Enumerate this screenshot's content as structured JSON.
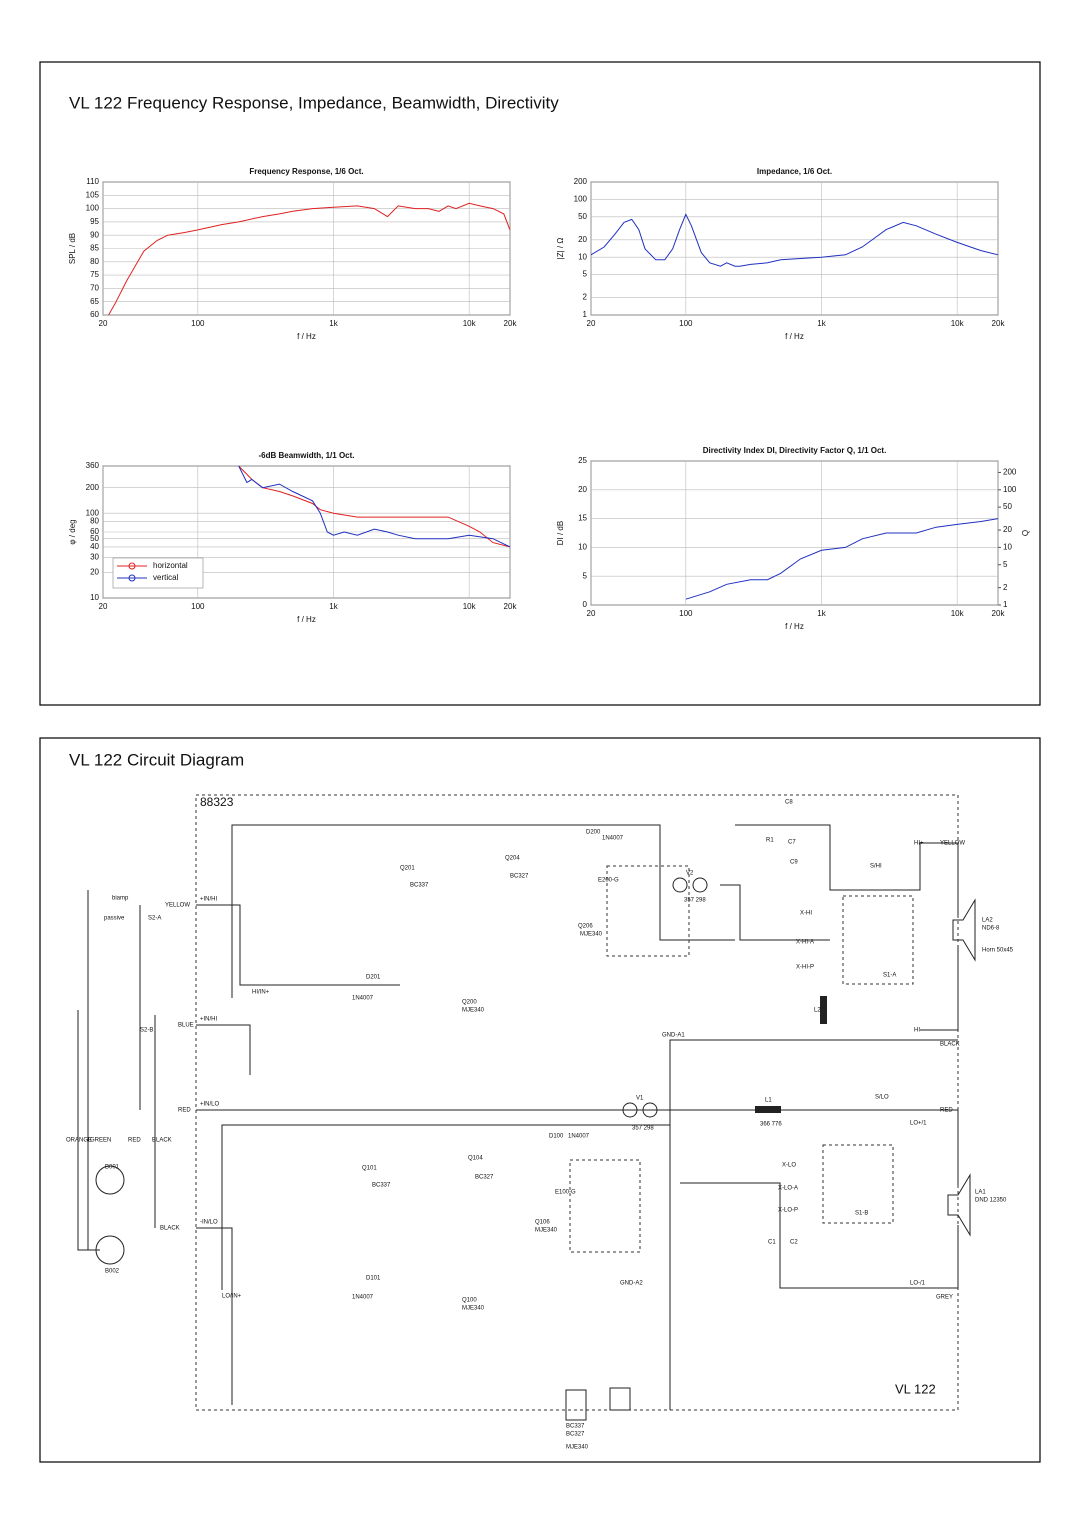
{
  "title": "VL 122  Frequency Response, Impedance, Beamwidth, Directivity",
  "chart_data": [
    {
      "type": "line",
      "title": "Frequency Response, 1/6 Oct.",
      "xlabel": "f / Hz",
      "ylabel": "SPL / dB",
      "xscale": "log",
      "xlim": [
        20,
        20000
      ],
      "ylim": [
        60,
        110
      ],
      "grid": true,
      "xticks": [
        20,
        100,
        {
          "value": 1000,
          "label": "1k"
        },
        {
          "value": 10000,
          "label": "10k"
        },
        {
          "value": 20000,
          "label": "20k"
        }
      ],
      "yticks": [
        60,
        65,
        70,
        75,
        80,
        85,
        90,
        95,
        100,
        105,
        110
      ],
      "series": [
        {
          "color": "#e02020",
          "x": [
            22,
            25,
            30,
            40,
            50,
            60,
            80,
            100,
            150,
            200,
            300,
            400,
            500,
            700,
            1000,
            1500,
            2000,
            2500,
            3000,
            4000,
            5000,
            6000,
            7000,
            8000,
            10000,
            12000,
            15000,
            18000,
            20000
          ],
          "values": [
            60,
            65,
            73,
            84,
            88,
            90,
            91,
            92,
            94,
            95,
            97,
            98,
            99,
            100,
            100.5,
            101,
            100,
            97,
            101,
            100,
            100,
            99,
            101,
            100,
            102,
            101,
            100,
            98,
            92
          ]
        }
      ]
    },
    {
      "type": "line",
      "title": "Impedance, 1/6 Oct.",
      "xlabel": "f / Hz",
      "ylabel": "|Z| / Ω",
      "xscale": "log",
      "yscale": "log",
      "xlim": [
        20,
        20000
      ],
      "ylim": [
        1,
        200
      ],
      "grid": true,
      "xticks": [
        20,
        100,
        {
          "value": 1000,
          "label": "1k"
        },
        {
          "value": 10000,
          "label": "10k"
        },
        {
          "value": 20000,
          "label": "20k"
        }
      ],
      "yticks": [
        1,
        2,
        5,
        10,
        20,
        50,
        100,
        200
      ],
      "series": [
        {
          "color": "#2030c0",
          "x": [
            20,
            25,
            30,
            35,
            40,
            45,
            50,
            60,
            70,
            80,
            90,
            100,
            110,
            130,
            150,
            180,
            200,
            230,
            250,
            300,
            400,
            500,
            700,
            1000,
            1500,
            2000,
            2500,
            3000,
            4000,
            5000,
            7000,
            10000,
            15000,
            20000
          ],
          "values": [
            11,
            15,
            25,
            40,
            45,
            30,
            14,
            9,
            9,
            14,
            30,
            55,
            35,
            12,
            8,
            7,
            8,
            7,
            7,
            7.5,
            8,
            9,
            9.5,
            10,
            11,
            15,
            22,
            30,
            40,
            35,
            25,
            18,
            13,
            11
          ]
        }
      ]
    },
    {
      "type": "line",
      "title": "-6dB Beamwidth, 1/1 Oct.",
      "xlabel": "f / Hz",
      "ylabel": "φ / deg",
      "xscale": "log",
      "yscale": "log",
      "xlim": [
        20,
        20000
      ],
      "ylim": [
        10,
        360
      ],
      "grid": true,
      "legend": "lower-left",
      "xticks": [
        20,
        100,
        {
          "value": 1000,
          "label": "1k"
        },
        {
          "value": 10000,
          "label": "10k"
        },
        {
          "value": 20000,
          "label": "20k"
        }
      ],
      "yticks": [
        10,
        20,
        30,
        40,
        50,
        60,
        80,
        100,
        200,
        360
      ],
      "series": [
        {
          "name": "horizontal",
          "color": "#e02020",
          "x": [
            200,
            250,
            300,
            400,
            500,
            700,
            800,
            1000,
            1500,
            2000,
            3000,
            4000,
            5000,
            7000,
            10000,
            12000,
            15000,
            20000
          ],
          "values": [
            360,
            250,
            200,
            180,
            160,
            130,
            110,
            100,
            90,
            90,
            90,
            90,
            90,
            90,
            70,
            60,
            45,
            40
          ]
        },
        {
          "name": "vertical",
          "color": "#2030c0",
          "x": [
            200,
            230,
            250,
            300,
            400,
            500,
            700,
            800,
            900,
            1000,
            1200,
            1500,
            2000,
            2500,
            3000,
            4000,
            5000,
            7000,
            10000,
            15000,
            20000
          ],
          "values": [
            360,
            230,
            250,
            200,
            220,
            180,
            140,
            100,
            60,
            55,
            60,
            55,
            65,
            60,
            55,
            50,
            50,
            50,
            55,
            50,
            40
          ]
        }
      ]
    },
    {
      "type": "line",
      "title": "Directivity Index DI, Directivity Factor Q, 1/1 Oct.",
      "xlabel": "f / Hz",
      "ylabel": "DI / dB",
      "y2label": "Q",
      "xscale": "log",
      "y2scale": "log",
      "xlim": [
        20,
        20000
      ],
      "ylim": [
        0,
        25
      ],
      "y2lim": [
        1,
        316
      ],
      "grid": true,
      "xticks": [
        20,
        100,
        {
          "value": 1000,
          "label": "1k"
        },
        {
          "value": 10000,
          "label": "10k"
        },
        {
          "value": 20000,
          "label": "20k"
        }
      ],
      "yticks": [
        0,
        5,
        10,
        15,
        20,
        25
      ],
      "y2ticks": [
        1,
        2,
        5,
        10,
        20,
        50,
        100,
        200
      ],
      "series": [
        {
          "color": "#2030c0",
          "x": [
            100,
            150,
            200,
            300,
            400,
            500,
            700,
            1000,
            1500,
            2000,
            3000,
            4000,
            5000,
            7000,
            10000,
            15000,
            20000
          ],
          "values": [
            1,
            2.3,
            3.6,
            4.4,
            4.4,
            5.5,
            8,
            9.5,
            10,
            11.5,
            12.5,
            12.5,
            12.5,
            13.5,
            14,
            14.5,
            15
          ]
        }
      ]
    }
  ],
  "diagram": {
    "title": "VL 122 Circuit Diagram",
    "code": "88323",
    "model": "VL 122",
    "labels": [
      "YELLOW",
      "+IN/HI",
      "S2-A",
      "biamp",
      "passive",
      "BLUE",
      "+IN/HI",
      "S2-B",
      "RED",
      "+IN/LO",
      "BLACK",
      "-IN/LO",
      "B001",
      "B002",
      "HI/IN+",
      "LO/IN+",
      "D201",
      "1N4007",
      "D101",
      "1N4007",
      "Q200",
      "MJE340",
      "Q100",
      "MJE340",
      "D200",
      "1N4007",
      "D100",
      "1N4007",
      "V2",
      "V1",
      "357 298",
      "357 298",
      "R1",
      "C7",
      "C8",
      "C9",
      "X-HI",
      "X-HI-A",
      "X-HI-P",
      "S1-A",
      "L2",
      "HI+",
      "YELLOW",
      "HI-",
      "BLACK",
      "GND-A1",
      "S/LO",
      "RED",
      "LO+/1",
      "L1",
      "366 776",
      "X-LO",
      "X-LO-A",
      "X-LO-P",
      "S1-B",
      "C1",
      "C2",
      "LO-/1",
      "GREY",
      "GND-A2",
      "LA2",
      "ND6-8",
      "Horn 50x45",
      "LA1",
      "DND 12350",
      "Q201",
      "BC337",
      "Q204",
      "BC327",
      "Q101",
      "BC337",
      "Q104",
      "BC327",
      "Q206",
      "MJE340",
      "Q106",
      "MJE340",
      "E200-G",
      "E100-G",
      "S/HI",
      "BC337",
      "BC327",
      "MJE340",
      "ORANGE",
      "GREEN",
      "RED",
      "BLACK"
    ]
  }
}
